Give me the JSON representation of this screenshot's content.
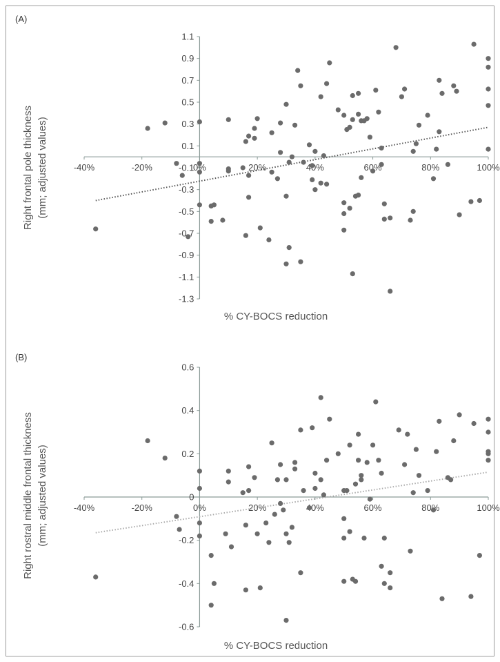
{
  "chart_data": [
    {
      "panel_label": "(A)",
      "type": "scatter",
      "xlabel": "% CY-BOCS reduction",
      "ylabel_line1": "Right frontal pole thickness",
      "ylabel_line2": "(mm; adjusted values)",
      "xlim": [
        -0.4,
        1.0
      ],
      "ylim": [
        -1.3,
        1.1
      ],
      "x_ticks": [
        -0.4,
        -0.2,
        0,
        0.2,
        0.4,
        0.6,
        0.8,
        1.0
      ],
      "x_tick_labels": [
        "-40%",
        "-20%",
        "0%",
        "20%",
        "40%",
        "60%",
        "80%",
        "100%"
      ],
      "y_ticks": [
        1.1,
        0.9,
        0.7,
        0.5,
        0.3,
        0.1,
        -0.1,
        -0.3,
        -0.5,
        -0.7,
        -0.9,
        -1.1,
        -1.3
      ],
      "y_tick_labels": [
        "1.1",
        "0.9",
        "0.7",
        "0.5",
        "0.3",
        "0.1",
        "-0.1",
        "-0.3",
        "-0.5",
        "-0.7",
        "-0.9",
        "-1.1",
        "-1.3"
      ],
      "trendline": {
        "x": [
          -0.36,
          1.0
        ],
        "y": [
          -0.4,
          0.27
        ],
        "color": "#555555"
      },
      "marker_color": "#6b6b6b",
      "points": [
        [
          -0.36,
          -0.66
        ],
        [
          -0.18,
          0.26
        ],
        [
          -0.12,
          0.31
        ],
        [
          -0.08,
          -0.06
        ],
        [
          -0.06,
          -0.17
        ],
        [
          -0.04,
          -0.73
        ],
        [
          0.0,
          0.32
        ],
        [
          0.0,
          -0.06
        ],
        [
          0.0,
          -0.14
        ],
        [
          0.0,
          -0.44
        ],
        [
          0.04,
          -0.45
        ],
        [
          0.04,
          -0.59
        ],
        [
          0.05,
          -0.44
        ],
        [
          0.08,
          -0.58
        ],
        [
          0.1,
          0.34
        ],
        [
          0.1,
          -0.11
        ],
        [
          0.1,
          -0.13
        ],
        [
          0.15,
          -0.1
        ],
        [
          0.16,
          0.14
        ],
        [
          0.16,
          -0.72
        ],
        [
          0.17,
          0.19
        ],
        [
          0.17,
          -0.17
        ],
        [
          0.17,
          -0.37
        ],
        [
          0.19,
          0.26
        ],
        [
          0.19,
          0.17
        ],
        [
          0.2,
          0.35
        ],
        [
          0.21,
          -0.65
        ],
        [
          0.24,
          -0.76
        ],
        [
          0.25,
          0.22
        ],
        [
          0.25,
          -0.14
        ],
        [
          0.27,
          -0.2
        ],
        [
          0.28,
          0.31
        ],
        [
          0.28,
          0.04
        ],
        [
          0.3,
          0.48
        ],
        [
          0.3,
          -0.98
        ],
        [
          0.3,
          -0.36
        ],
        [
          0.31,
          -0.05
        ],
        [
          0.31,
          -0.83
        ],
        [
          0.32,
          0.0
        ],
        [
          0.33,
          0.29
        ],
        [
          0.34,
          0.79
        ],
        [
          0.35,
          0.65
        ],
        [
          0.35,
          -0.96
        ],
        [
          0.36,
          -0.05
        ],
        [
          0.38,
          0.11
        ],
        [
          0.39,
          -0.08
        ],
        [
          0.39,
          -0.21
        ],
        [
          0.4,
          0.05
        ],
        [
          0.4,
          -0.3
        ],
        [
          0.42,
          0.55
        ],
        [
          0.42,
          -0.24
        ],
        [
          0.43,
          0.01
        ],
        [
          0.44,
          -0.25
        ],
        [
          0.44,
          0.67
        ],
        [
          0.45,
          0.86
        ],
        [
          0.48,
          0.43
        ],
        [
          0.5,
          0.38
        ],
        [
          0.5,
          -0.42
        ],
        [
          0.5,
          -0.52
        ],
        [
          0.5,
          -0.67
        ],
        [
          0.51,
          0.25
        ],
        [
          0.52,
          0.27
        ],
        [
          0.52,
          -0.47
        ],
        [
          0.53,
          -1.07
        ],
        [
          0.53,
          0.56
        ],
        [
          0.53,
          0.34
        ],
        [
          0.54,
          -0.36
        ],
        [
          0.55,
          0.58
        ],
        [
          0.55,
          0.39
        ],
        [
          0.55,
          -0.35
        ],
        [
          0.56,
          0.33
        ],
        [
          0.56,
          -0.19
        ],
        [
          0.57,
          0.33
        ],
        [
          0.58,
          0.35
        ],
        [
          0.59,
          0.18
        ],
        [
          0.6,
          -0.13
        ],
        [
          0.61,
          0.61
        ],
        [
          0.62,
          0.41
        ],
        [
          0.63,
          0.08
        ],
        [
          0.63,
          -0.07
        ],
        [
          0.64,
          -0.43
        ],
        [
          0.64,
          -0.57
        ],
        [
          0.66,
          -0.56
        ],
        [
          0.66,
          -1.23
        ],
        [
          0.68,
          1.0
        ],
        [
          0.7,
          0.55
        ],
        [
          0.71,
          0.62
        ],
        [
          0.73,
          -0.58
        ],
        [
          0.74,
          0.05
        ],
        [
          0.74,
          -0.5
        ],
        [
          0.75,
          0.12
        ],
        [
          0.76,
          0.29
        ],
        [
          0.79,
          0.38
        ],
        [
          0.81,
          -0.2
        ],
        [
          0.82,
          0.07
        ],
        [
          0.83,
          0.23
        ],
        [
          0.83,
          0.7
        ],
        [
          0.84,
          0.58
        ],
        [
          0.86,
          -0.07
        ],
        [
          0.88,
          0.65
        ],
        [
          0.89,
          0.6
        ],
        [
          0.9,
          -0.53
        ],
        [
          0.94,
          -0.41
        ],
        [
          0.95,
          1.03
        ],
        [
          0.97,
          -0.4
        ],
        [
          1.0,
          0.9
        ],
        [
          1.0,
          0.82
        ],
        [
          1.0,
          0.62
        ],
        [
          1.0,
          0.47
        ],
        [
          1.0,
          0.07
        ]
      ]
    },
    {
      "panel_label": "(B)",
      "type": "scatter",
      "xlabel": "% CY-BOCS reduction",
      "ylabel_line1": "Right rostral middle frontal thickness",
      "ylabel_line2": "(mm; adjusted values)",
      "xlim": [
        -0.4,
        1.0
      ],
      "ylim": [
        -0.6,
        0.6
      ],
      "x_ticks": [
        -0.4,
        -0.2,
        0,
        0.2,
        0.4,
        0.6,
        0.8,
        1.0
      ],
      "x_tick_labels": [
        "-40%",
        "-20%",
        "0%",
        "20%",
        "40%",
        "60%",
        "80%",
        "100%"
      ],
      "y_ticks": [
        0.6,
        0.4,
        0.2,
        0,
        -0.2,
        -0.4,
        -0.6
      ],
      "y_tick_labels": [
        "0.6",
        "0.4",
        "0.2",
        "0",
        "-0.2",
        "-0.4",
        "-0.6"
      ],
      "trendline": {
        "x": [
          -0.36,
          1.0
        ],
        "y": [
          -0.165,
          0.115
        ],
        "color": "#aaaaaa"
      },
      "marker_color": "#6b6b6b",
      "points": [
        [
          -0.36,
          -0.37
        ],
        [
          -0.18,
          0.26
        ],
        [
          -0.12,
          0.18
        ],
        [
          -0.08,
          -0.09
        ],
        [
          -0.07,
          -0.15
        ],
        [
          0.0,
          0.12
        ],
        [
          0.0,
          0.04
        ],
        [
          0.0,
          -0.12
        ],
        [
          0.0,
          -0.18
        ],
        [
          0.04,
          -0.27
        ],
        [
          0.04,
          -0.5
        ],
        [
          0.05,
          -0.4
        ],
        [
          0.09,
          -0.17
        ],
        [
          0.1,
          0.12
        ],
        [
          0.1,
          0.07
        ],
        [
          0.11,
          -0.23
        ],
        [
          0.15,
          0.02
        ],
        [
          0.16,
          -0.13
        ],
        [
          0.17,
          0.03
        ],
        [
          0.17,
          0.14
        ],
        [
          0.19,
          0.09
        ],
        [
          0.2,
          -0.17
        ],
        [
          0.21,
          -0.42
        ],
        [
          0.16,
          -0.43
        ],
        [
          0.23,
          -0.12
        ],
        [
          0.24,
          -0.21
        ],
        [
          0.25,
          0.25
        ],
        [
          0.26,
          -0.08
        ],
        [
          0.27,
          0.08
        ],
        [
          0.28,
          0.15
        ],
        [
          0.28,
          -0.03
        ],
        [
          0.29,
          -0.06
        ],
        [
          0.3,
          -0.57
        ],
        [
          0.3,
          0.08
        ],
        [
          0.3,
          -0.17
        ],
        [
          0.31,
          -0.21
        ],
        [
          0.32,
          -0.14
        ],
        [
          0.33,
          0.13
        ],
        [
          0.33,
          0.16
        ],
        [
          0.35,
          0.31
        ],
        [
          0.35,
          -0.35
        ],
        [
          0.36,
          0.03
        ],
        [
          0.38,
          -0.05
        ],
        [
          0.39,
          0.32
        ],
        [
          0.4,
          0.04
        ],
        [
          0.4,
          0.11
        ],
        [
          0.42,
          0.46
        ],
        [
          0.42,
          0.08
        ],
        [
          0.43,
          0.01
        ],
        [
          0.44,
          0.17
        ],
        [
          0.45,
          0.36
        ],
        [
          0.48,
          0.2
        ],
        [
          0.5,
          0.03
        ],
        [
          0.5,
          -0.1
        ],
        [
          0.5,
          -0.19
        ],
        [
          0.5,
          -0.39
        ],
        [
          0.51,
          0.03
        ],
        [
          0.52,
          0.24
        ],
        [
          0.52,
          -0.16
        ],
        [
          0.53,
          -0.38
        ],
        [
          0.54,
          0.06
        ],
        [
          0.54,
          -0.39
        ],
        [
          0.55,
          0.17
        ],
        [
          0.55,
          0.29
        ],
        [
          0.56,
          0.08
        ],
        [
          0.56,
          0.1
        ],
        [
          0.57,
          -0.19
        ],
        [
          0.58,
          0.16
        ],
        [
          0.59,
          -0.01
        ],
        [
          0.6,
          0.24
        ],
        [
          0.61,
          0.44
        ],
        [
          0.62,
          0.17
        ],
        [
          0.63,
          0.11
        ],
        [
          0.63,
          -0.32
        ],
        [
          0.64,
          -0.19
        ],
        [
          0.64,
          -0.4
        ],
        [
          0.66,
          -0.35
        ],
        [
          0.66,
          -0.42
        ],
        [
          0.69,
          0.31
        ],
        [
          0.71,
          0.15
        ],
        [
          0.72,
          0.29
        ],
        [
          0.73,
          -0.25
        ],
        [
          0.74,
          0.02
        ],
        [
          0.75,
          0.22
        ],
        [
          0.76,
          0.1
        ],
        [
          0.79,
          0.03
        ],
        [
          0.81,
          -0.06
        ],
        [
          0.82,
          0.21
        ],
        [
          0.83,
          0.35
        ],
        [
          0.84,
          -0.47
        ],
        [
          0.86,
          0.09
        ],
        [
          0.87,
          0.08
        ],
        [
          0.88,
          0.26
        ],
        [
          0.9,
          0.38
        ],
        [
          0.94,
          -0.46
        ],
        [
          0.95,
          0.34
        ],
        [
          0.97,
          -0.27
        ],
        [
          1.0,
          0.36
        ],
        [
          1.0,
          0.3
        ],
        [
          1.0,
          0.21
        ],
        [
          1.0,
          0.2
        ],
        [
          1.0,
          0.17
        ]
      ]
    }
  ]
}
